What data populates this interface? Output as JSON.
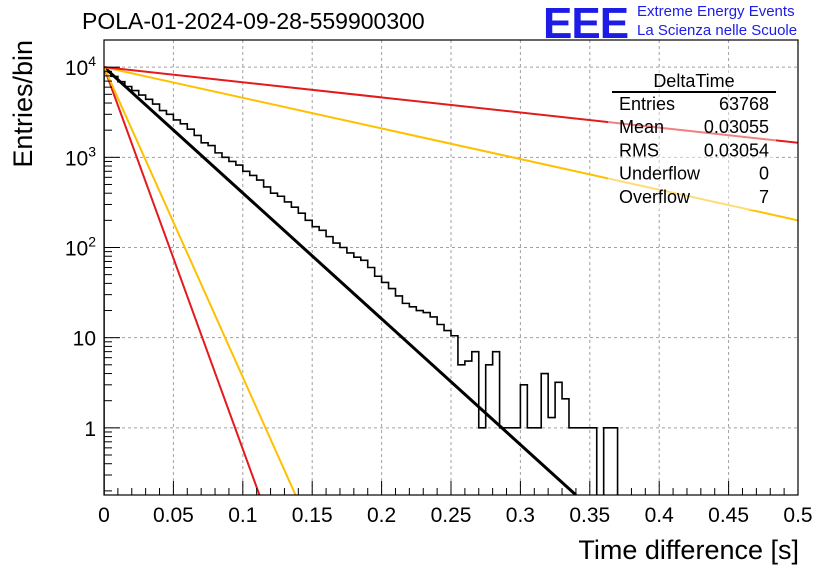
{
  "header": {
    "title": "POLA-01-2024-09-28-559900300",
    "logo_mark": "EEE",
    "logo_line_1": "Extreme Energy Events",
    "logo_line_2": "La Scienza nelle Scuole"
  },
  "colors": {
    "brand": "#1c1ce6",
    "histogram": "#000000",
    "fit": "#000000",
    "red": "#e41a1c",
    "orange": "#ffc000",
    "grid": "#a0a0a0"
  },
  "chart_data": {
    "type": "line",
    "xlabel": "Time difference [s]",
    "ylabel": "Entries/bin",
    "xlim": [
      0,
      0.5
    ],
    "ylim": [
      0.18,
      20000
    ],
    "yscale": "log",
    "grid": true,
    "x_ticks": [
      {
        "value": 0,
        "label": "0"
      },
      {
        "value": 0.05,
        "label": "0.05"
      },
      {
        "value": 0.1,
        "label": "0.1"
      },
      {
        "value": 0.15,
        "label": "0.15"
      },
      {
        "value": 0.2,
        "label": "0.2"
      },
      {
        "value": 0.25,
        "label": "0.25"
      },
      {
        "value": 0.3,
        "label": "0.3"
      },
      {
        "value": 0.35,
        "label": "0.35"
      },
      {
        "value": 0.4,
        "label": "0.4"
      },
      {
        "value": 0.45,
        "label": "0.45"
      },
      {
        "value": 0.5,
        "label": "0.5"
      }
    ],
    "y_ticks": [
      {
        "value": 1,
        "base": "1",
        "exp": ""
      },
      {
        "value": 10,
        "base": "10",
        "exp": ""
      },
      {
        "value": 100,
        "base": "10",
        "exp": "2"
      },
      {
        "value": 1000,
        "base": "10",
        "exp": "3"
      },
      {
        "value": 10000,
        "base": "10",
        "exp": "4"
      }
    ],
    "histogram": {
      "bin_width": 0.005,
      "values": [
        8800,
        7900,
        6900,
        6100,
        5500,
        4900,
        4400,
        3900,
        3300,
        3000,
        2600,
        2350,
        2050,
        1750,
        1450,
        1350,
        1120,
        1000,
        900,
        820,
        700,
        630,
        560,
        470,
        400,
        370,
        320,
        280,
        240,
        200,
        170,
        155,
        132,
        112,
        100,
        87,
        78,
        72,
        60,
        48,
        41,
        35,
        29,
        24,
        22,
        20,
        19,
        17,
        14,
        12,
        10.5,
        5,
        5.5,
        7,
        1,
        5,
        7,
        1,
        1,
        1,
        3,
        1,
        1,
        4,
        1.3,
        3.2,
        2.1,
        1,
        1,
        1,
        1,
        0,
        1,
        1,
        0.1,
        0,
        0,
        0,
        0,
        0,
        0,
        0,
        0,
        0,
        0,
        0,
        0,
        0,
        0,
        0,
        0,
        0,
        0,
        0,
        0,
        0,
        0,
        0,
        0,
        0
      ]
    },
    "fits": [
      {
        "color": "black",
        "x": [
          0,
          0.34
        ],
        "y": [
          10000,
          0.18
        ]
      },
      {
        "color": "red",
        "x": [
          0,
          0.112
        ],
        "y": [
          10000,
          0.18
        ]
      },
      {
        "color": "orange",
        "x": [
          0,
          0.138
        ],
        "y": [
          10000,
          0.18
        ]
      },
      {
        "color": "orange",
        "x": [
          0,
          0.5
        ],
        "y": [
          10000,
          200
        ]
      },
      {
        "color": "red",
        "x": [
          0,
          0.5
        ],
        "y": [
          10000,
          1450
        ]
      }
    ],
    "stats_box": {
      "title": "DeltaTime",
      "rows": [
        {
          "label": "Entries",
          "value": "63768"
        },
        {
          "label": "Mean",
          "value": "0.03055"
        },
        {
          "label": "RMS",
          "value": "0.03054"
        },
        {
          "label": "Underflow",
          "value": "0"
        },
        {
          "label": "Overflow",
          "value": "7"
        }
      ]
    }
  }
}
